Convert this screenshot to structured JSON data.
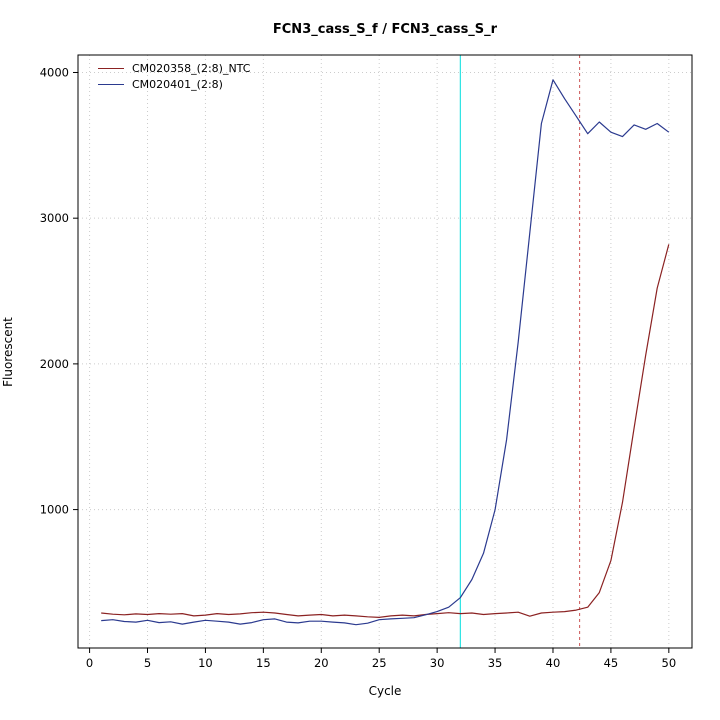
{
  "chart_data": {
    "type": "line",
    "title": "FCN3_cass_S_f / FCN3_cass_S_r",
    "xlabel": "Cycle",
    "ylabel": "Fluorescent",
    "xlim": [
      -1,
      52
    ],
    "ylim": [
      50,
      4120
    ],
    "xticks": [
      0,
      5,
      10,
      15,
      20,
      25,
      30,
      35,
      40,
      45,
      50
    ],
    "yticks": [
      1000,
      2000,
      3000,
      4000
    ],
    "grid": {
      "style": "dotted",
      "color": "#cccccc"
    },
    "frame_color": "#000000",
    "legend_position": "top-left",
    "vlines": [
      {
        "x": 32,
        "color": "#00dddd",
        "style": "solid"
      },
      {
        "x": 42.3,
        "color": "#cc5555",
        "style": "dashed"
      }
    ],
    "x": [
      1,
      2,
      3,
      4,
      5,
      6,
      7,
      8,
      9,
      10,
      11,
      12,
      13,
      14,
      15,
      16,
      17,
      18,
      19,
      20,
      21,
      22,
      23,
      24,
      25,
      26,
      27,
      28,
      29,
      30,
      31,
      32,
      33,
      34,
      35,
      36,
      37,
      38,
      39,
      40,
      41,
      42,
      43,
      44,
      45,
      46,
      47,
      48,
      49,
      50
    ],
    "series": [
      {
        "name": "CM020358_(2:8)_NTC",
        "color": "#8b2222",
        "values": [
          290,
          282,
          278,
          284,
          280,
          286,
          282,
          286,
          270,
          276,
          286,
          280,
          284,
          292,
          296,
          290,
          280,
          270,
          276,
          280,
          270,
          276,
          270,
          264,
          260,
          270,
          276,
          270,
          280,
          286,
          292,
          286,
          290,
          280,
          286,
          290,
          296,
          268,
          290,
          296,
          300,
          310,
          330,
          430,
          650,
          1050,
          1560,
          2060,
          2520,
          2820
        ]
      },
      {
        "name": "CM020401_(2:8)",
        "color": "#2b3a8f",
        "values": [
          238,
          244,
          232,
          228,
          240,
          224,
          230,
          214,
          228,
          240,
          234,
          228,
          214,
          224,
          244,
          250,
          228,
          222,
          234,
          234,
          228,
          222,
          210,
          220,
          244,
          250,
          254,
          258,
          278,
          300,
          330,
          395,
          520,
          700,
          1000,
          1480,
          2150,
          2900,
          3650,
          3950,
          3820,
          3700,
          3580,
          3660,
          3590,
          3560,
          3640,
          3610,
          3650,
          3590
        ]
      }
    ]
  }
}
